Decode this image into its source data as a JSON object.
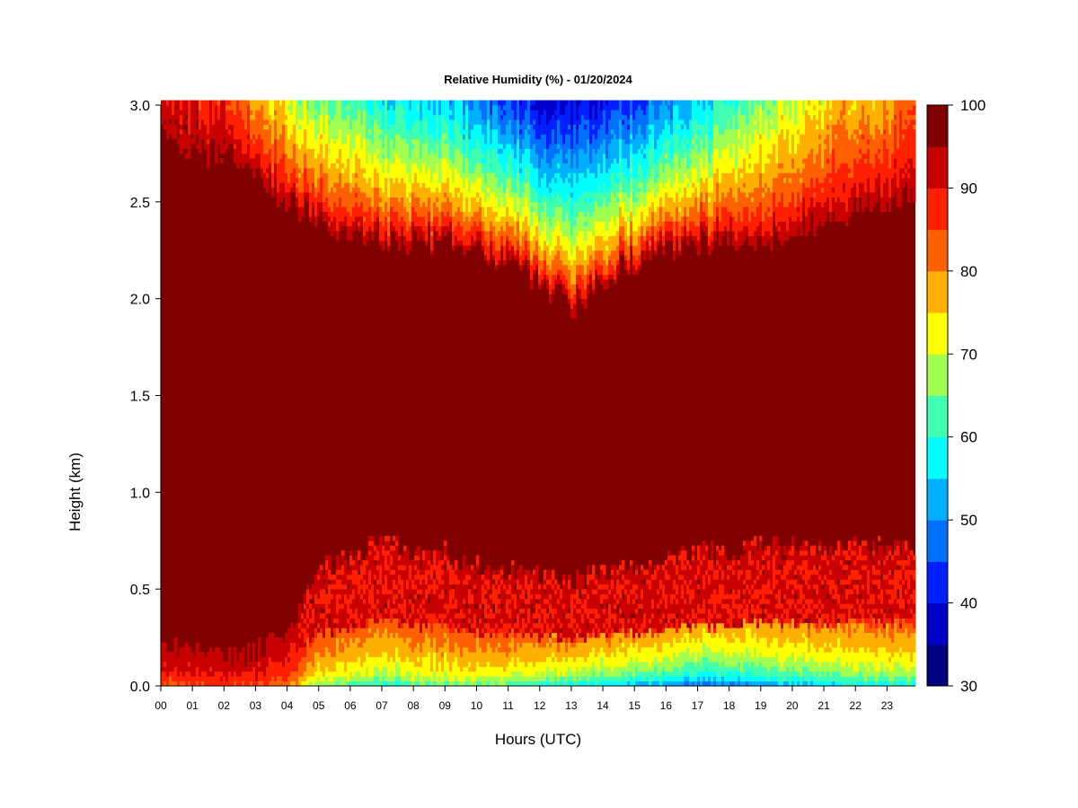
{
  "chart_data": {
    "type": "heatmap",
    "title": "Relative Humidity (%) - 01/20/2024",
    "xlabel": "Hours (UTC)",
    "ylabel": "Height (km)",
    "x_ticks": [
      "00",
      "01",
      "02",
      "03",
      "04",
      "05",
      "06",
      "07",
      "08",
      "09",
      "10",
      "11",
      "12",
      "13",
      "14",
      "15",
      "16",
      "17",
      "18",
      "19",
      "20",
      "21",
      "22",
      "23"
    ],
    "xlim": [
      0,
      23.9
    ],
    "y_ticks": [
      "0.0",
      "0.5",
      "1.0",
      "1.5",
      "2.0",
      "2.5",
      "3.0"
    ],
    "ylim": [
      0,
      3.0
    ],
    "colorbar": {
      "ticks": [
        "30",
        "40",
        "50",
        "60",
        "70",
        "80",
        "90",
        "100"
      ],
      "range": [
        30,
        100
      ],
      "levels": [
        {
          "from": 30,
          "to": 35,
          "color": "#000080"
        },
        {
          "from": 35,
          "to": 40,
          "color": "#0000C8"
        },
        {
          "from": 40,
          "to": 45,
          "color": "#0020FF"
        },
        {
          "from": 45,
          "to": 50,
          "color": "#0070FF"
        },
        {
          "from": 50,
          "to": 55,
          "color": "#00B0FF"
        },
        {
          "from": 55,
          "to": 60,
          "color": "#00FFFF"
        },
        {
          "from": 60,
          "to": 65,
          "color": "#40FFB0"
        },
        {
          "from": 65,
          "to": 70,
          "color": "#A0FF50"
        },
        {
          "from": 70,
          "to": 75,
          "color": "#FFFF00"
        },
        {
          "from": 75,
          "to": 80,
          "color": "#FFB000"
        },
        {
          "from": 80,
          "to": 85,
          "color": "#FF6000"
        },
        {
          "from": 85,
          "to": 90,
          "color": "#FF2000"
        },
        {
          "from": 90,
          "to": 95,
          "color": "#C80000"
        },
        {
          "from": 95,
          "to": 100,
          "color": "#800000"
        }
      ]
    },
    "profile_hours": [
      0,
      1,
      2,
      3,
      4,
      5,
      6,
      7,
      8,
      9,
      10,
      11,
      12,
      13,
      14,
      15,
      16,
      17,
      18,
      19,
      20,
      21,
      22,
      23.9
    ],
    "top_layer": {
      "description_height_km": [
        2.8,
        2.75,
        2.75,
        2.65,
        2.5,
        2.4,
        2.35,
        2.3,
        2.3,
        2.28,
        2.25,
        2.2,
        2.1,
        1.95,
        2.1,
        2.2,
        2.25,
        2.3,
        2.3,
        2.3,
        2.35,
        2.4,
        2.45,
        2.55
      ],
      "min_rh_at_top": [
        93,
        90,
        88,
        80,
        72,
        66,
        62,
        58,
        56,
        54,
        50,
        45,
        40,
        38,
        42,
        45,
        50,
        55,
        62,
        66,
        70,
        74,
        78,
        82
      ]
    },
    "bottom_layer": {
      "moist_top_km": [
        0.2,
        0.18,
        0.15,
        0.18,
        0.25,
        0.6,
        0.65,
        0.75,
        0.7,
        0.68,
        0.62,
        0.6,
        0.58,
        0.55,
        0.58,
        0.62,
        0.65,
        0.68,
        0.7,
        0.72,
        0.72,
        0.7,
        0.72,
        0.7
      ],
      "min_rh_at_surface": [
        80,
        82,
        84,
        82,
        78,
        62,
        58,
        56,
        58,
        60,
        60,
        58,
        55,
        52,
        50,
        48,
        44,
        42,
        42,
        44,
        48,
        50,
        52,
        55
      ]
    }
  }
}
